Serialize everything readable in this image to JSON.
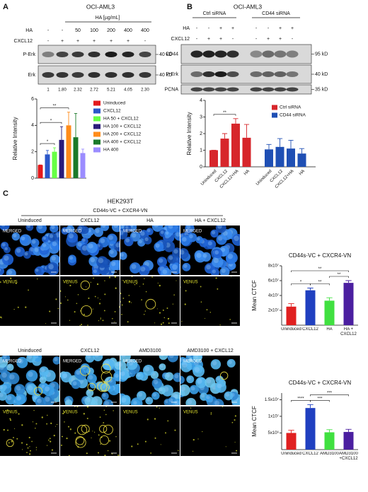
{
  "panels": {
    "A": {
      "letter": "A",
      "title": "OCI-AML3",
      "ha_header": "HA [µg/mL]",
      "rows": [
        {
          "label": "HA",
          "cells": [
            "-",
            "-",
            "50",
            "100",
            "200",
            "400",
            "400"
          ]
        },
        {
          "label": "CXCL12",
          "cells": [
            "-",
            "+",
            "+",
            "+",
            "+",
            "+",
            "-"
          ]
        }
      ],
      "bands": [
        {
          "label": "P-Erk",
          "marker": "40 kD"
        },
        {
          "label": "Erk",
          "marker": "40 kD"
        }
      ],
      "quant": [
        "1",
        "1.80",
        "2.32",
        "2.72",
        "5.21",
        "4.05",
        "2.30"
      ]
    },
    "B": {
      "letter": "B",
      "title": "OCI-AML3",
      "groups": [
        "Ctrl siRNA",
        "CD44 siRNA"
      ],
      "rows": [
        {
          "label": "HA",
          "cells": [
            "-",
            "-",
            "+",
            "+",
            "-",
            "-",
            "+",
            "+"
          ]
        },
        {
          "label": "CXCL12",
          "cells": [
            "-",
            "+",
            "+",
            "-",
            "-",
            "+",
            "+",
            "-"
          ]
        }
      ],
      "bands": [
        {
          "label": "CD44",
          "marker": "95 kD"
        },
        {
          "label": "P-Erk",
          "marker": "40 kD"
        },
        {
          "label": "PCNA",
          "marker": "35 kD"
        }
      ]
    },
    "C": {
      "letter": "C",
      "title": "HEK293T",
      "subtitle": "CD44s-VC + CXCR4-VN",
      "grids": [
        {
          "columns": [
            "Uninduced",
            "CXCL12",
            "HA",
            "HA + CXCL12"
          ],
          "rows": [
            "MERGED",
            "VENUS"
          ]
        },
        {
          "columns": [
            "Uninduced",
            "CXCL12",
            "AMD3100",
            "AMD3100 + CXCL12"
          ],
          "rows": [
            "MERGED",
            "VENUS"
          ]
        }
      ]
    }
  },
  "chart_data": [
    {
      "type": "bar",
      "ylabel": "Relative Intensity",
      "categories": [
        "Uninduced",
        "CXCL12",
        "HA 50 + CXCL12",
        "HA 100 + CXCL12",
        "HA 200 + CXCL12",
        "HA 400 + CXCL12",
        "HA 400"
      ],
      "values": [
        1.0,
        1.8,
        2.0,
        2.9,
        4.0,
        3.1,
        1.9
      ],
      "errors": [
        0,
        0.3,
        0.3,
        1.0,
        1.0,
        1.8,
        0.3
      ],
      "colors": [
        "#e41a1c",
        "#2b57c9",
        "#66ff44",
        "#2a1b7a",
        "#ff8c1a",
        "#1a7a2a",
        "#9b8cff"
      ],
      "ylim": [
        0,
        6
      ],
      "yticks": [
        0,
        2,
        4,
        6
      ],
      "legend": "right",
      "annotations": [
        {
          "text": "**",
          "from": 0,
          "to": 4
        },
        {
          "text": "*",
          "from": 0,
          "to": 3
        },
        {
          "text": "*",
          "from": 0,
          "to": 2
        }
      ]
    },
    {
      "type": "grouped-bar",
      "ylabel": "Relative Intensity",
      "categories": [
        "Uninduced",
        "CXCL12",
        "CXCL12+HA",
        "HA"
      ],
      "series": [
        {
          "name": "Ctrl siRNA",
          "color": "#d7262b",
          "values": [
            1.0,
            1.7,
            2.6,
            1.75
          ],
          "errors": [
            0,
            0.3,
            0.3,
            0.8
          ]
        },
        {
          "name": "CD44 siRNA",
          "color": "#1f4fb4",
          "values": [
            1.05,
            1.2,
            1.1,
            0.8
          ],
          "errors": [
            0.3,
            0.5,
            0.5,
            0.3
          ]
        }
      ],
      "ylim": [
        0,
        4
      ],
      "yticks": [
        0,
        1,
        2,
        3,
        4
      ],
      "legend": "upper right",
      "annotations": [
        {
          "text": "**",
          "from": 0,
          "to": 2
        }
      ]
    },
    {
      "type": "bar",
      "title": "CD44s-VC + CXCR4-VN",
      "ylabel": "Mean CTCF",
      "categories": [
        "Uninduced",
        "CXCL12",
        "HA",
        "HA + CXCL12"
      ],
      "values": [
        25000000,
        47000000,
        33000000,
        57000000
      ],
      "errors": [
        4000000,
        3000000,
        4000000,
        3000000
      ],
      "colors": [
        "#e02020",
        "#2040c0",
        "#40e040",
        "#4b1fa0"
      ],
      "ylim": [
        0,
        80000000
      ],
      "yticks": [
        {
          "value": 20000000,
          "label": "2x10⁷"
        },
        {
          "value": 40000000,
          "label": "4x10⁷"
        },
        {
          "value": 60000000,
          "label": "6x10⁷"
        },
        {
          "value": 80000000,
          "label": "8x10⁷"
        }
      ],
      "annotations": [
        {
          "text": "*",
          "from": 0,
          "to": 1
        },
        {
          "text": "**",
          "from": 1,
          "to": 2
        },
        {
          "text": "**",
          "from": 2,
          "to": 3
        },
        {
          "text": "**",
          "from": 0,
          "to": 3
        }
      ]
    },
    {
      "type": "bar",
      "title": "CD44s-VC + CXCR4-VN",
      "ylabel": "Mean CTCF",
      "categories": [
        "Uninduced",
        "CXCL12",
        "AMD3100",
        "AMD3100 +CXCL12"
      ],
      "values": [
        5000000,
        12500000,
        5200000,
        5300000
      ],
      "errors": [
        800000,
        1000000,
        800000,
        800000
      ],
      "colors": [
        "#e02020",
        "#2040c0",
        "#40e040",
        "#4b1fa0"
      ],
      "ylim": [
        0,
        17000000
      ],
      "yticks": [
        {
          "value": 5000000,
          "label": "5x10⁶"
        },
        {
          "value": 10000000,
          "label": "1x10⁷"
        },
        {
          "value": 15000000,
          "label": "1.5x10⁷"
        }
      ],
      "annotations": [
        {
          "text": "****",
          "from": 0,
          "to": 1
        },
        {
          "text": "***",
          "from": 1,
          "to": 2
        },
        {
          "text": "***",
          "from": 1,
          "to": 3
        }
      ]
    }
  ]
}
